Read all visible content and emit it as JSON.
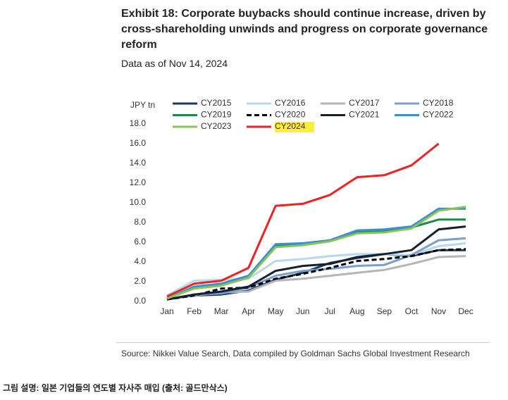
{
  "chart_data": {
    "type": "line",
    "title": "Exhibit 18: Corporate buybacks should continue increase, driven by cross-shareholding unwinds and progress on corporate governance reform",
    "subtitle": "Data as of Nov 14, 2024",
    "y_label": "JPY tn",
    "source": "Source: Nikkei Value Search, Data compiled by Goldman Sachs Global Investment Research",
    "categories": [
      "Jan",
      "Feb",
      "Mar",
      "Apr",
      "May",
      "Jun",
      "Jul",
      "Aug",
      "Sep",
      "Oct",
      "Nov",
      "Dec"
    ],
    "ylim": [
      0,
      18
    ],
    "yticks": [
      {
        "value": 0,
        "label": "0.0"
      },
      {
        "value": 2,
        "label": "2.0"
      },
      {
        "value": 4,
        "label": "4.0"
      },
      {
        "value": 6,
        "label": "6.0"
      },
      {
        "value": 8,
        "label": "8.0"
      },
      {
        "value": 10,
        "label": "10.0"
      },
      {
        "value": 12,
        "label": "12.0"
      },
      {
        "value": 14,
        "label": "14.0"
      },
      {
        "value": 16,
        "label": "16.0"
      },
      {
        "value": 18,
        "label": "18.0"
      }
    ],
    "grid": false,
    "series": [
      {
        "name": "CY2015",
        "color": "#1b3a6b",
        "values": [
          0.2,
          0.6,
          0.7,
          1.1,
          2.2,
          2.9,
          3.9,
          4.4,
          4.8,
          4.6,
          5.2,
          5.2
        ]
      },
      {
        "name": "CY2016",
        "color": "#b8d8f0",
        "values": [
          0.6,
          2.1,
          2.2,
          2.3,
          4.1,
          4.3,
          4.6,
          4.8,
          4.8,
          4.7,
          5.6,
          5.9
        ]
      },
      {
        "name": "CY2017",
        "color": "#b5b5b5",
        "values": [
          0.2,
          0.6,
          0.9,
          1.0,
          2.1,
          2.3,
          2.6,
          2.9,
          3.2,
          3.8,
          4.5,
          4.6
        ]
      },
      {
        "name": "CY2018",
        "color": "#7b9fcc",
        "values": [
          0.2,
          0.7,
          0.8,
          1.4,
          2.6,
          3.1,
          3.3,
          3.6,
          3.7,
          4.7,
          6.2,
          6.4
        ]
      },
      {
        "name": "CY2019",
        "color": "#1e8a4a",
        "values": [
          0.3,
          1.4,
          1.7,
          2.5,
          5.6,
          5.8,
          6.1,
          7.0,
          7.1,
          7.5,
          8.3,
          8.3
        ]
      },
      {
        "name": "CY2020",
        "color": "#000000",
        "dashed": true,
        "values": [
          0.2,
          0.6,
          1.3,
          1.4,
          2.3,
          2.8,
          3.4,
          4.1,
          4.3,
          4.6,
          5.2,
          5.3
        ]
      },
      {
        "name": "CY2021",
        "color": "#16202e",
        "values": [
          0.2,
          0.7,
          1.0,
          1.5,
          3.1,
          3.6,
          3.8,
          4.5,
          4.8,
          5.2,
          7.3,
          7.6
        ]
      },
      {
        "name": "CY2022",
        "color": "#3b8fd4",
        "values": [
          0.3,
          1.5,
          1.8,
          2.6,
          5.8,
          5.9,
          6.2,
          7.2,
          7.3,
          7.6,
          9.4,
          9.4
        ]
      },
      {
        "name": "CY2023",
        "color": "#86c456",
        "values": [
          0.3,
          1.3,
          1.6,
          2.4,
          5.5,
          5.7,
          6.1,
          6.9,
          7.0,
          7.4,
          9.2,
          9.6
        ]
      },
      {
        "name": "CY2024",
        "color": "#ee2222",
        "highlight": "#ffee33",
        "values": [
          0.5,
          1.8,
          2.1,
          3.4,
          9.7,
          9.9,
          10.8,
          12.6,
          12.8,
          13.8,
          16.0,
          null
        ]
      }
    ]
  },
  "caption": "그림 설명: 일본 기업들의 연도별 자사주 매입 (출처: 골드만삭스)"
}
